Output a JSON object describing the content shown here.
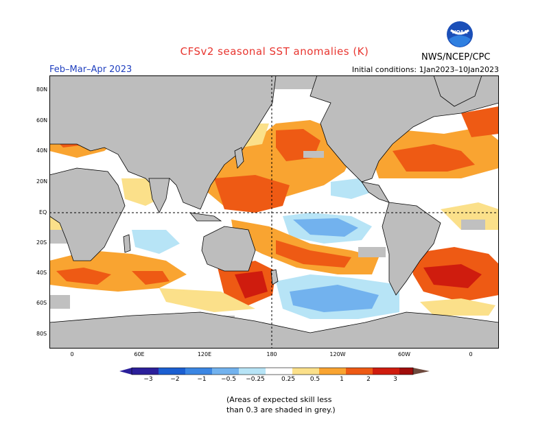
{
  "header": {
    "title": "CFSv2 seasonal SST anomalies (K)",
    "period": "Feb–Mar–Apr 2023",
    "initial_conditions": "Initial conditions: 1Jan2023–10Jan2023",
    "agency": "NWS/NCEP/CPC",
    "logo_text": "NOAA"
  },
  "map": {
    "lat_labels": [
      "80N",
      "60N",
      "40N",
      "20N",
      "EQ",
      "20S",
      "40S",
      "60S",
      "80S"
    ],
    "lon_labels": [
      "0",
      "60E",
      "120E",
      "180",
      "120W",
      "60W",
      "0"
    ],
    "land_color": "#bdbdbd",
    "skill_mask_color": "#c0c0c0"
  },
  "colorbar": {
    "tick_labels": [
      "−3",
      "−2",
      "−1",
      "−0.5",
      "−0.25",
      "0.25",
      "0.5",
      "1",
      "2",
      "3"
    ],
    "colors": [
      "#2b1f9a",
      "#1b5fd1",
      "#3b86e3",
      "#72b2ee",
      "#b7e4f6",
      "#ffffff",
      "#fbe08a",
      "#f9a431",
      "#ee5a14",
      "#cf1c0e",
      "#a00d0b",
      "#6e4a3e"
    ]
  },
  "footnote": {
    "line1": "(Areas of expected skill less",
    "line2": "than 0.3 are shaded in grey.)"
  }
}
